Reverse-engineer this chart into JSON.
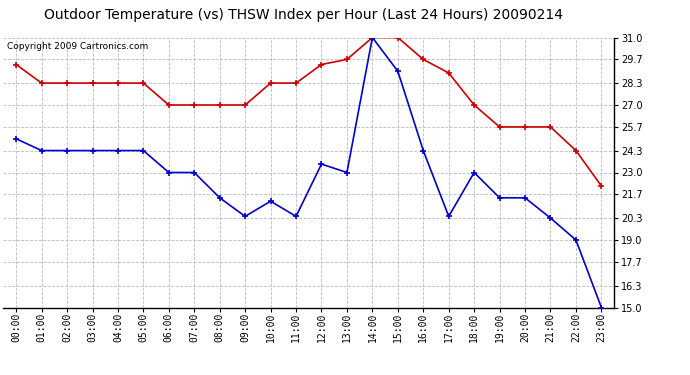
{
  "title": "Outdoor Temperature (vs) THSW Index per Hour (Last 24 Hours) 20090214",
  "copyright": "Copyright 2009 Cartronics.com",
  "hours": [
    "00:00",
    "01:00",
    "02:00",
    "03:00",
    "04:00",
    "05:00",
    "06:00",
    "07:00",
    "08:00",
    "09:00",
    "10:00",
    "11:00",
    "12:00",
    "13:00",
    "14:00",
    "15:00",
    "16:00",
    "17:00",
    "18:00",
    "19:00",
    "20:00",
    "21:00",
    "22:00",
    "23:00"
  ],
  "red_data": [
    29.4,
    28.3,
    28.3,
    28.3,
    28.3,
    28.3,
    27.0,
    27.0,
    27.0,
    27.0,
    28.3,
    28.3,
    29.4,
    29.7,
    31.0,
    31.0,
    29.7,
    28.9,
    27.0,
    25.7,
    25.7,
    25.7,
    24.3,
    22.2
  ],
  "blue_data": [
    25.0,
    24.3,
    24.3,
    24.3,
    24.3,
    24.3,
    23.0,
    23.0,
    21.5,
    20.4,
    21.3,
    20.4,
    23.5,
    23.0,
    31.0,
    29.0,
    24.3,
    20.4,
    23.0,
    21.5,
    21.5,
    20.3,
    19.0,
    15.0
  ],
  "ylim": [
    15.0,
    31.0
  ],
  "yticks": [
    15.0,
    16.3,
    17.7,
    19.0,
    20.3,
    21.7,
    23.0,
    24.3,
    25.7,
    27.0,
    28.3,
    29.7,
    31.0
  ],
  "red_color": "#cc0000",
  "blue_color": "#0000cc",
  "background_color": "#ffffff",
  "grid_color": "#bbbbbb",
  "title_fontsize": 10,
  "copyright_fontsize": 6.5,
  "tick_fontsize": 7
}
